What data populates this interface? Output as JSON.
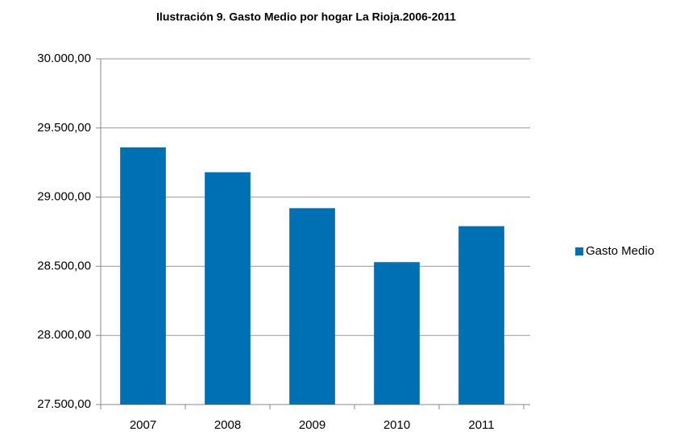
{
  "chart_data": {
    "type": "bar",
    "title": "Ilustración 9. Gasto Medio por hogar La Rioja.2006-2011",
    "categories": [
      "2007",
      "2008",
      "2009",
      "2010",
      "2011"
    ],
    "series": [
      {
        "name": "Gasto Medio",
        "color": "#0070b5",
        "values": [
          29360,
          29180,
          28920,
          28530,
          28790
        ]
      }
    ],
    "ylim": [
      27500,
      30000
    ],
    "yticks": [
      {
        "value": 27500,
        "label": "27.500,00"
      },
      {
        "value": 28000,
        "label": "28.000,00"
      },
      {
        "value": 28500,
        "label": "28.500,00"
      },
      {
        "value": 29000,
        "label": "29.000,00"
      },
      {
        "value": 29500,
        "label": "29.500,00"
      },
      {
        "value": 30000,
        "label": "30.000,00"
      }
    ],
    "grid": true,
    "legend": "right"
  }
}
